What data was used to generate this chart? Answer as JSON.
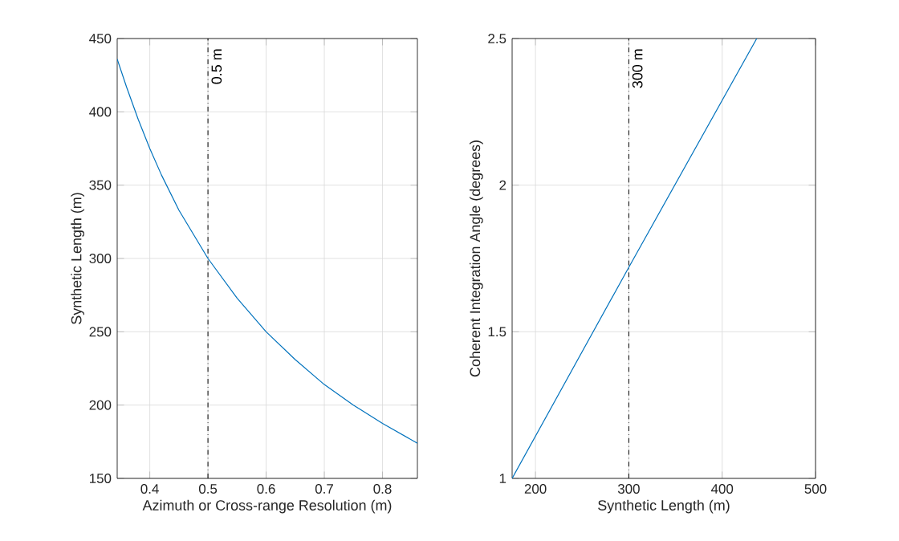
{
  "chart_data": [
    {
      "type": "line",
      "xlabel": "Azimuth or Cross-range Resolution (m)",
      "ylabel": "Synthetic Length (m)",
      "x": [
        0.344,
        0.36,
        0.38,
        0.4,
        0.42,
        0.45,
        0.5,
        0.55,
        0.6,
        0.65,
        0.7,
        0.75,
        0.8,
        0.86
      ],
      "series": [
        {
          "color": "#0072bd",
          "values": [
            436,
            417,
            395,
            375,
            357,
            333,
            300,
            273,
            250,
            231,
            214,
            200,
            187.5,
            174
          ]
        }
      ],
      "xlim": [
        0.344,
        0.86
      ],
      "ylim": [
        150,
        450
      ],
      "xticks": [
        0.4,
        0.5,
        0.6,
        0.7,
        0.8
      ],
      "yticks": [
        150,
        200,
        250,
        300,
        350,
        400,
        450
      ],
      "grid": true,
      "ref_lines": [
        {
          "axis": "x",
          "value": 0.5,
          "label": "0.5 m",
          "color": "#000000",
          "line_style": "dashdot"
        }
      ]
    },
    {
      "type": "line",
      "xlabel": "Synthetic Length (m)",
      "ylabel": "Coherent Integration Angle (degrees)",
      "x": [
        175,
        300,
        437
      ],
      "series": [
        {
          "color": "#0072bd",
          "values": [
            1.0,
            1.72,
            2.5
          ]
        }
      ],
      "xlim": [
        175,
        500
      ],
      "ylim": [
        1,
        2.5
      ],
      "xticks": [
        200,
        300,
        400,
        500
      ],
      "yticks": [
        1,
        1.5,
        2,
        2.5
      ],
      "grid": true,
      "ref_lines": [
        {
          "axis": "x",
          "value": 300,
          "label": "300 m",
          "color": "#000000",
          "line_style": "dashdot"
        }
      ]
    }
  ]
}
